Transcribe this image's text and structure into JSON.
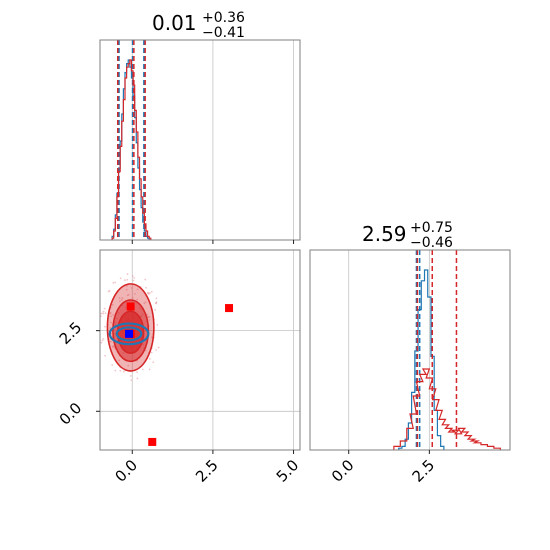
{
  "figure": {
    "type": "corner-plot"
  },
  "colors": {
    "blue": "#1f77b4",
    "red": "#d62728",
    "marker_red": "#ff0000",
    "marker_blue": "#0000ff",
    "grid": "#c4c4c4"
  },
  "titles": {
    "param1": {
      "median": "0.01",
      "plus": "+0.36",
      "minus": "−0.41"
    },
    "param2": {
      "median": "2.59",
      "plus": "+0.75",
      "minus": "−0.46"
    }
  },
  "axes": {
    "x1": {
      "range": [
        -1.0,
        5.2
      ],
      "ticks": [
        {
          "v": 0.0,
          "label": "0.0"
        },
        {
          "v": 2.5,
          "label": "2.5"
        },
        {
          "v": 5.0,
          "label": "5.0"
        }
      ]
    },
    "y2": {
      "range": [
        -1.2,
        5.0
      ],
      "ticks": [
        {
          "v": 0.0,
          "label": "0.0"
        },
        {
          "v": 2.5,
          "label": "2.5"
        }
      ]
    },
    "x2": {
      "range": [
        -1.2,
        5.0
      ],
      "ticks": [
        {
          "v": 0.0,
          "label": "0.0"
        },
        {
          "v": 2.5,
          "label": "2.5"
        }
      ]
    }
  },
  "chart_data": [
    {
      "type": "histogram",
      "panel": "param1-marginal",
      "x_range": [
        -1.0,
        5.2
      ],
      "series": [
        {
          "color": "blue",
          "quantiles": [
            -0.41,
            0.01,
            0.36
          ],
          "bins": [
            [
              -0.6,
              0.02
            ],
            [
              -0.55,
              0.06
            ],
            [
              -0.5,
              0.14
            ],
            [
              -0.45,
              0.26
            ],
            [
              -0.4,
              0.4
            ],
            [
              -0.35,
              0.55
            ],
            [
              -0.3,
              0.7
            ],
            [
              -0.25,
              0.84
            ],
            [
              -0.2,
              0.93
            ],
            [
              -0.15,
              0.98
            ],
            [
              -0.1,
              1.0
            ],
            [
              -0.05,
              0.96
            ],
            [
              0.0,
              0.9
            ],
            [
              0.05,
              0.8
            ],
            [
              0.1,
              0.68
            ],
            [
              0.15,
              0.54
            ],
            [
              0.2,
              0.4
            ],
            [
              0.25,
              0.28
            ],
            [
              0.3,
              0.18
            ],
            [
              0.35,
              0.1
            ],
            [
              0.4,
              0.05
            ],
            [
              0.45,
              0.02
            ],
            [
              0.5,
              0.01
            ]
          ]
        },
        {
          "color": "red",
          "quantiles": [
            -0.45,
            0.05,
            0.4
          ],
          "bins": [
            [
              -0.6,
              0.01
            ],
            [
              -0.55,
              0.05
            ],
            [
              -0.5,
              0.12
            ],
            [
              -0.45,
              0.24
            ],
            [
              -0.4,
              0.38
            ],
            [
              -0.35,
              0.52
            ],
            [
              -0.3,
              0.66
            ],
            [
              -0.25,
              0.78
            ],
            [
              -0.2,
              0.9
            ],
            [
              -0.15,
              0.96
            ],
            [
              -0.1,
              0.98
            ],
            [
              -0.05,
              1.0
            ],
            [
              0.0,
              0.94
            ],
            [
              0.05,
              0.86
            ],
            [
              0.1,
              0.72
            ],
            [
              0.15,
              0.6
            ],
            [
              0.2,
              0.46
            ],
            [
              0.25,
              0.34
            ],
            [
              0.3,
              0.24
            ],
            [
              0.35,
              0.15
            ],
            [
              0.4,
              0.09
            ],
            [
              0.45,
              0.05
            ],
            [
              0.5,
              0.02
            ],
            [
              0.55,
              0.01
            ]
          ]
        }
      ]
    },
    {
      "type": "histogram",
      "panel": "param2-marginal",
      "x_range": [
        -1.2,
        5.0
      ],
      "series": [
        {
          "color": "blue",
          "quantiles": [
            2.1,
            2.2,
            2.59
          ],
          "bins": [
            [
              1.6,
              0.01
            ],
            [
              1.7,
              0.02
            ],
            [
              1.8,
              0.06
            ],
            [
              1.9,
              0.15
            ],
            [
              2.0,
              0.32
            ],
            [
              2.1,
              0.55
            ],
            [
              2.2,
              0.78
            ],
            [
              2.3,
              0.94
            ],
            [
              2.4,
              1.0
            ],
            [
              2.5,
              0.85
            ],
            [
              2.6,
              0.52
            ],
            [
              2.7,
              0.22
            ],
            [
              2.8,
              0.08
            ],
            [
              2.9,
              0.02
            ]
          ]
        },
        {
          "color": "red",
          "quantiles": [
            2.13,
            2.59,
            3.34
          ],
          "bins": [
            [
              1.5,
              0.02
            ],
            [
              1.7,
              0.05
            ],
            [
              1.9,
              0.12
            ],
            [
              2.0,
              0.2
            ],
            [
              2.1,
              0.3
            ],
            [
              2.2,
              0.38
            ],
            [
              2.3,
              0.42
            ],
            [
              2.4,
              0.45
            ],
            [
              2.5,
              0.4
            ],
            [
              2.6,
              0.34
            ],
            [
              2.7,
              0.28
            ],
            [
              2.8,
              0.22
            ],
            [
              2.9,
              0.17
            ],
            [
              3.0,
              0.14
            ],
            [
              3.1,
              0.12
            ],
            [
              3.2,
              0.1
            ],
            [
              3.3,
              0.11
            ],
            [
              3.4,
              0.09
            ],
            [
              3.5,
              0.12
            ],
            [
              3.6,
              0.1
            ],
            [
              3.7,
              0.08
            ],
            [
              3.8,
              0.06
            ],
            [
              3.9,
              0.05
            ],
            [
              4.0,
              0.04
            ],
            [
              4.2,
              0.03
            ],
            [
              4.4,
              0.02
            ],
            [
              4.6,
              0.01
            ]
          ]
        }
      ]
    },
    {
      "type": "scatter",
      "panel": "joint",
      "x_range": [
        -1.0,
        5.2
      ],
      "y_range": [
        -1.2,
        5.0
      ],
      "contours": [
        {
          "color": "red",
          "level": "outer",
          "cx": -0.05,
          "cy": 2.6,
          "rx": 0.72,
          "ry": 1.35,
          "opacity": 0.35
        },
        {
          "color": "red",
          "level": "mid",
          "cx": -0.05,
          "cy": 2.5,
          "rx": 0.55,
          "ry": 0.95,
          "opacity": 0.55
        },
        {
          "color": "red",
          "level": "inner",
          "cx": -0.05,
          "cy": 2.45,
          "rx": 0.4,
          "ry": 0.65,
          "opacity": 0.75
        },
        {
          "color": "blue",
          "level": "outer",
          "cx": -0.1,
          "cy": 2.4,
          "rx": 0.6,
          "ry": 0.32,
          "opacity": 0.0
        },
        {
          "color": "blue",
          "level": "inner",
          "cx": -0.1,
          "cy": 2.4,
          "rx": 0.38,
          "ry": 0.2,
          "opacity": 0.0
        }
      ],
      "points": [
        {
          "x": -0.05,
          "y": 3.25,
          "color": "marker_red"
        },
        {
          "x": 3.0,
          "y": 3.2,
          "color": "marker_red"
        },
        {
          "x": -0.05,
          "y": 2.4,
          "color": "marker_red"
        },
        {
          "x": 0.62,
          "y": -0.95,
          "color": "marker_red"
        },
        {
          "x": -0.1,
          "y": 2.4,
          "color": "marker_blue"
        }
      ]
    }
  ]
}
